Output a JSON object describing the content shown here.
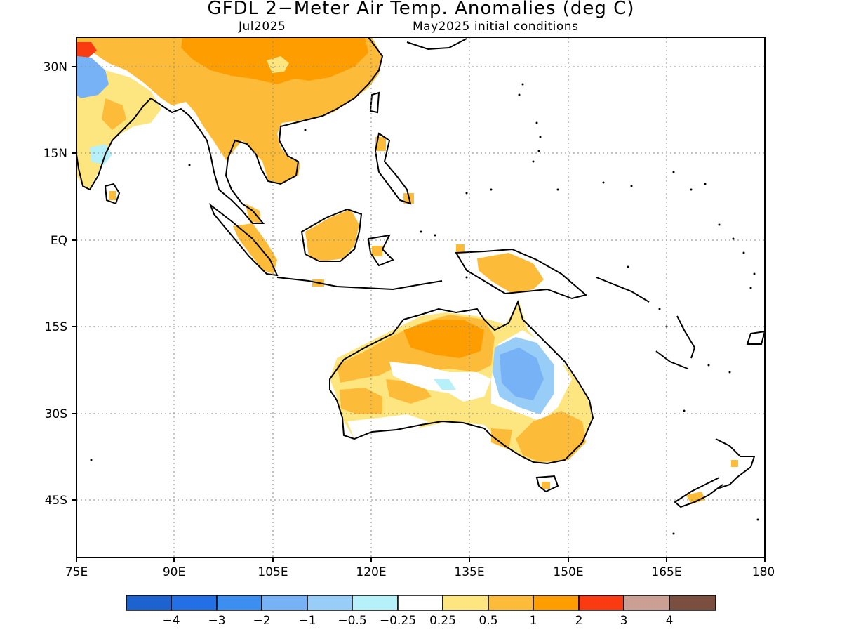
{
  "title": "GFDL 2−Meter Air Temp. Anomalies (deg C)",
  "subtitle_left": "Jul2025",
  "subtitle_right": "May2025 initial conditions",
  "lat_labels": [
    "30N",
    "15N",
    "EQ",
    "15S",
    "30S",
    "45S"
  ],
  "lon_labels": [
    "75E",
    "90E",
    "105E",
    "120E",
    "135E",
    "150E",
    "165E",
    "180"
  ],
  "colorbar": {
    "colors": [
      "#1c63cf",
      "#2370e6",
      "#3c8ff0",
      "#76b2f5",
      "#97cdf7",
      "#b6f0f8",
      "#ffffff",
      "#fde680",
      "#fdbb3a",
      "#fd9d00",
      "#fa3a10",
      "#c9a093",
      "#7a4f3f"
    ],
    "labels": [
      "−4",
      "−3",
      "−2",
      "−1",
      "−0.5",
      "−0.25",
      "0.25",
      "0.5",
      "1",
      "2",
      "3",
      "4"
    ]
  },
  "map": {
    "lon_range": [
      75,
      180
    ],
    "lat_range": [
      -55,
      35
    ],
    "grid_lines": true
  }
}
